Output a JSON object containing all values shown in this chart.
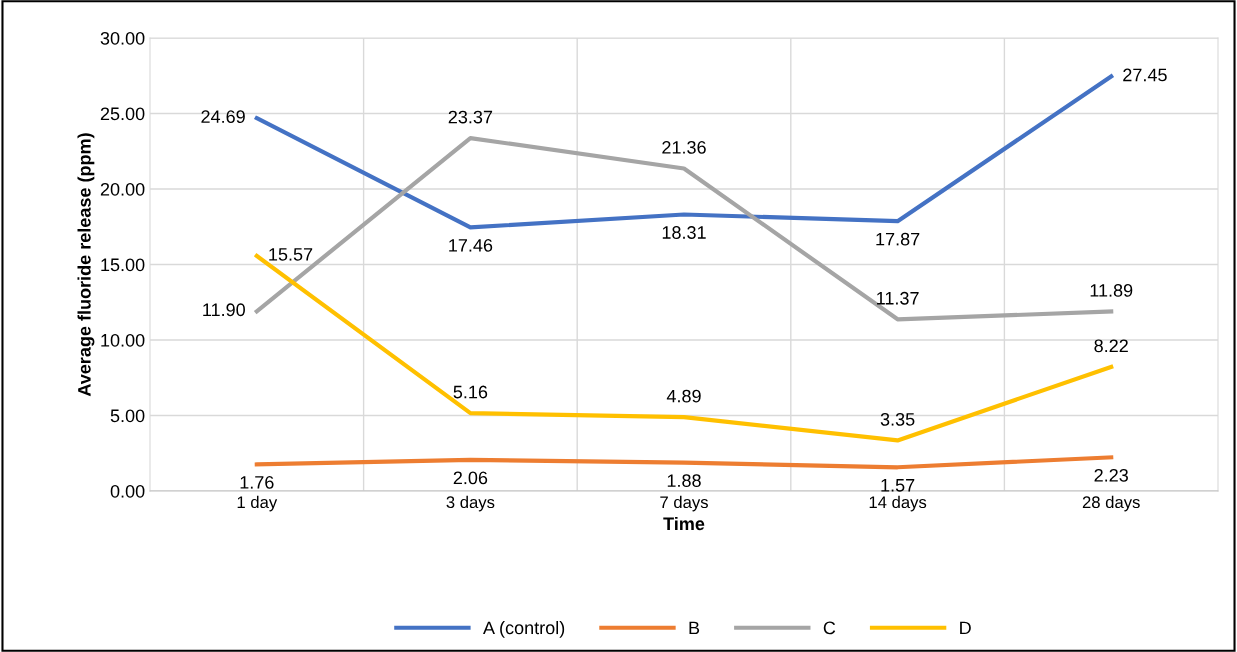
{
  "chart_data": {
    "type": "line",
    "xlabel": "Time",
    "ylabel": "Average fluoride release (ppm)",
    "categories": [
      "1 day",
      "3 days",
      "7 days",
      "14 days",
      "28 days"
    ],
    "series": [
      {
        "name": "A (control)",
        "color": "#4472c4",
        "values": [
          24.69,
          17.46,
          18.31,
          17.87,
          27.45
        ],
        "value_labels": [
          "24.69",
          "17.46",
          "18.31",
          "17.87",
          "27.45"
        ]
      },
      {
        "name": "B",
        "color": "#ed7d31",
        "values": [
          1.76,
          2.06,
          1.88,
          1.57,
          2.23
        ],
        "value_labels": [
          "1.76",
          "2.06",
          "1.88",
          "1.57",
          "2.23"
        ]
      },
      {
        "name": "C",
        "color": "#a5a5a5",
        "values": [
          11.9,
          23.37,
          21.36,
          11.37,
          11.89
        ],
        "value_labels": [
          "11.90",
          "23.37",
          "21.36",
          "11.37",
          "11.89"
        ]
      },
      {
        "name": "D",
        "color": "#ffc000",
        "values": [
          15.57,
          5.16,
          4.89,
          3.35,
          8.22
        ],
        "value_labels": [
          "15.57",
          "5.16",
          "4.89",
          "3.35",
          "8.22"
        ]
      }
    ],
    "ylim": [
      0,
      30
    ],
    "yticks": [
      {
        "value": 0,
        "label": "0.00"
      },
      {
        "value": 5,
        "label": "5.00"
      },
      {
        "value": 10,
        "label": "10.00"
      },
      {
        "value": 15,
        "label": "15.00"
      },
      {
        "value": 20,
        "label": "20.00"
      },
      {
        "value": 25,
        "label": "25.00"
      },
      {
        "value": 30,
        "label": "30.00"
      }
    ],
    "grid": true,
    "legend": "bottom",
    "marker": "none",
    "line_style": "solid"
  }
}
